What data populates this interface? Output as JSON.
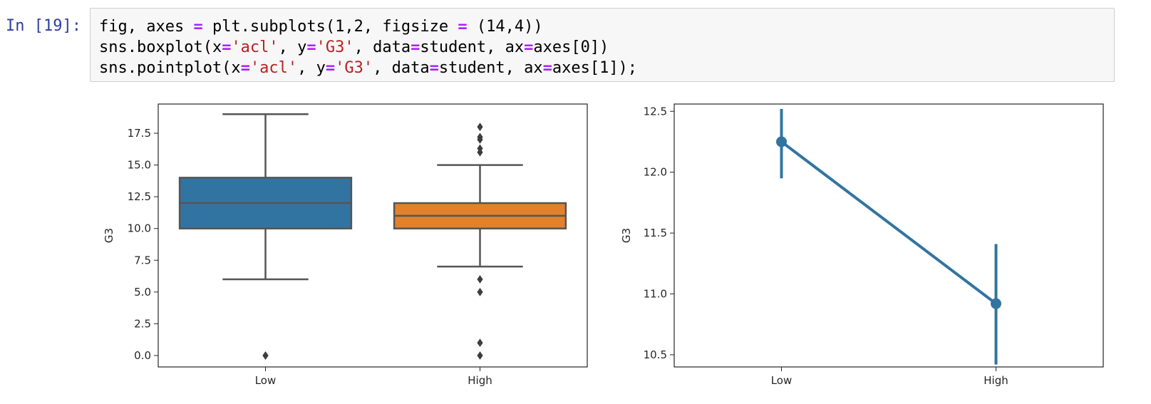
{
  "cell": {
    "prompt": "In [19]:",
    "code_lines": [
      [
        {
          "t": "fig, axes ",
          "c": "plain"
        },
        {
          "t": "=",
          "c": "op"
        },
        {
          "t": " plt.subplots(",
          "c": "plain"
        },
        {
          "t": "1",
          "c": "plain"
        },
        {
          "t": ",",
          "c": "plain"
        },
        {
          "t": "2",
          "c": "plain"
        },
        {
          "t": ", figsize ",
          "c": "plain"
        },
        {
          "t": "=",
          "c": "op"
        },
        {
          "t": " (",
          "c": "plain"
        },
        {
          "t": "14",
          "c": "plain"
        },
        {
          "t": ",",
          "c": "plain"
        },
        {
          "t": "4",
          "c": "plain"
        },
        {
          "t": "))",
          "c": "plain"
        }
      ],
      [
        {
          "t": "sns.boxplot(x",
          "c": "plain"
        },
        {
          "t": "=",
          "c": "op"
        },
        {
          "t": "'acl'",
          "c": "str"
        },
        {
          "t": ", y",
          "c": "plain"
        },
        {
          "t": "=",
          "c": "op"
        },
        {
          "t": "'G3'",
          "c": "str"
        },
        {
          "t": ", data",
          "c": "plain"
        },
        {
          "t": "=",
          "c": "op"
        },
        {
          "t": "student, ax",
          "c": "plain"
        },
        {
          "t": "=",
          "c": "op"
        },
        {
          "t": "axes[0])",
          "c": "plain"
        }
      ],
      [
        {
          "t": "sns.pointplot(x",
          "c": "plain"
        },
        {
          "t": "=",
          "c": "op"
        },
        {
          "t": "'acl'",
          "c": "str"
        },
        {
          "t": ", y",
          "c": "plain"
        },
        {
          "t": "=",
          "c": "op"
        },
        {
          "t": "'G3'",
          "c": "str"
        },
        {
          "t": ", data",
          "c": "plain"
        },
        {
          "t": "=",
          "c": "op"
        },
        {
          "t": "student, ax",
          "c": "plain"
        },
        {
          "t": "=",
          "c": "op"
        },
        {
          "t": "axes[1]);",
          "c": "plain"
        }
      ]
    ]
  },
  "colors": {
    "prompt": "#303f9f",
    "operator": "#aa22ff",
    "string": "#ba2121",
    "low_box": "#3274a1",
    "high_box": "#e1812c",
    "point_line": "#3274a1",
    "whisker": "#555555"
  },
  "chart_data": [
    {
      "type": "box",
      "categories": [
        "Low",
        "High"
      ],
      "ylabel": "G3",
      "xlabel": "",
      "ylim": [
        -0.9,
        19.8
      ],
      "yticks": [
        "0.0",
        "2.5",
        "5.0",
        "7.5",
        "10.0",
        "12.5",
        "15.0",
        "17.5"
      ],
      "boxes": [
        {
          "name": "Low",
          "min": 6,
          "q1": 10,
          "median": 12,
          "q3": 14,
          "max": 19,
          "outliers": [
            0,
            0
          ]
        },
        {
          "name": "High",
          "min": 7,
          "q1": 10,
          "median": 11,
          "q3": 12,
          "max": 15,
          "outliers": [
            16,
            16.3,
            17,
            17.2,
            18,
            6,
            5,
            1,
            0
          ]
        }
      ]
    },
    {
      "type": "point",
      "categories": [
        "Low",
        "High"
      ],
      "ylabel": "G3",
      "xlabel": "",
      "ylim": [
        10.4,
        12.56
      ],
      "yticks": [
        "10.5",
        "11.0",
        "11.5",
        "12.0",
        "12.5"
      ],
      "values": [
        12.25,
        10.92
      ],
      "ci": [
        [
          11.95,
          12.52
        ],
        [
          10.42,
          11.41
        ]
      ]
    }
  ]
}
